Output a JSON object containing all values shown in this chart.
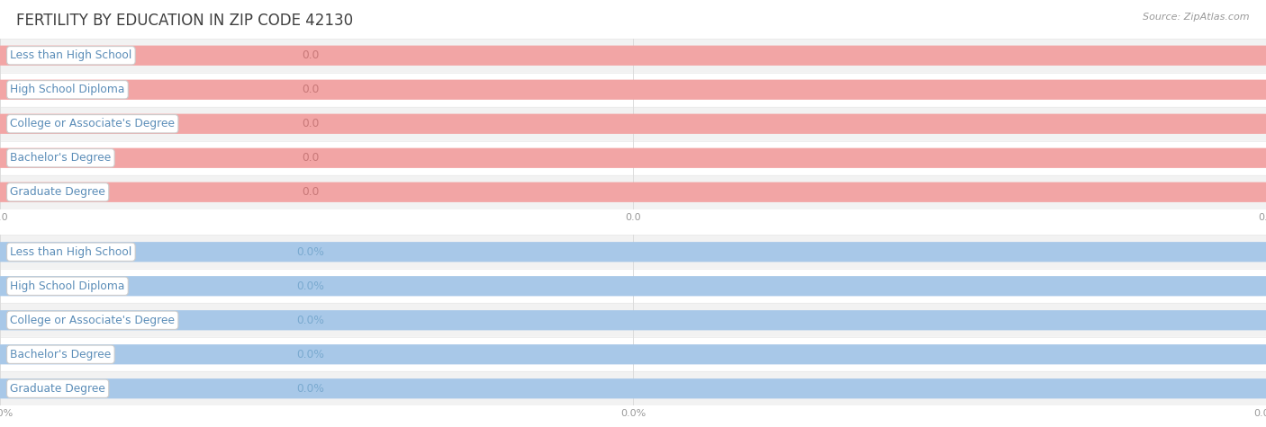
{
  "title": "FERTILITY BY EDUCATION IN ZIP CODE 42130",
  "source": "Source: ZipAtlas.com",
  "categories": [
    "Less than High School",
    "High School Diploma",
    "College or Associate's Degree",
    "Bachelor's Degree",
    "Graduate Degree"
  ],
  "top_values": [
    0.0,
    0.0,
    0.0,
    0.0,
    0.0
  ],
  "bottom_values": [
    0.0,
    0.0,
    0.0,
    0.0,
    0.0
  ],
  "top_bar_color": "#F2A5A5",
  "top_text_color": "#5b8db8",
  "top_value_color": "#c87878",
  "bottom_bar_color": "#A8C8E8",
  "bottom_text_color": "#5b8db8",
  "bottom_value_color": "#7aaad0",
  "bg_color": "#FFFFFF",
  "row_alt_color": "#F2F2F2",
  "grid_color": "#DCDCDC",
  "axis_tick_color": "#999999",
  "title_color": "#404040",
  "source_color": "#999999",
  "figwidth": 14.06,
  "figheight": 4.75,
  "dpi": 100
}
